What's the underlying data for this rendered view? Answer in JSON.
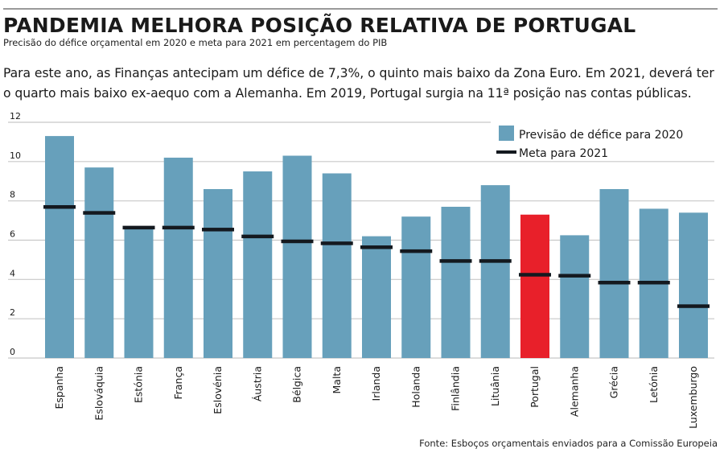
{
  "header": {
    "title": "PANDEMIA MELHORA POSIÇÃO RELATIVA DE PORTUGAL",
    "subtitle": "Precisão do défice orçamental em 2020 e meta para 2021 em percentagem do PIB"
  },
  "lead": {
    "line1": "Para este ano, as Finanças antecipam um défice de 7,3%, o quinto mais baixo da Zona Euro. Em 2021, deverá ter",
    "line2": "o quarto mais baixo ex-aequo com a Alemanha. Em 2019, Portugal surgia na 11ª posição nas contas públicas."
  },
  "source": "Fonte: Esboços orçamentais enviados para a Comissão Europeia",
  "colors": {
    "bar": "#67a0bb",
    "highlight": "#e8202a",
    "meta": "#14191f",
    "grid": "#c8c8c8"
  },
  "chart_data": {
    "type": "bar",
    "title": "PANDEMIA MELHORA POSIÇÃO RELATIVA DE PORTUGAL",
    "subtitle": "Precisão do défice orçamental em 2020 e meta para 2021 em percentagem do PIB",
    "xlabel": "",
    "ylabel": "",
    "ylim": [
      0,
      12
    ],
    "yticks": [
      "0",
      "2",
      "4",
      "6",
      "8",
      "10",
      "12"
    ],
    "grid": true,
    "legend_position": "top-right",
    "highlight_category": "Portugal",
    "categories": [
      "Espanha",
      "Eslováquia",
      "Estónia",
      "França",
      "Eslovénia",
      "Áustria",
      "Bélgica",
      "Malta",
      "Irlanda",
      "Holanda",
      "Finlândia",
      "Lituânia",
      "Portugal",
      "Alemanha",
      "Grécia",
      "Letónia",
      "Luxemburgo"
    ],
    "series": [
      {
        "name": "Previsão de défice para 2020",
        "kind": "bar",
        "values": [
          11.3,
          9.7,
          6.7,
          10.2,
          8.6,
          9.5,
          10.3,
          9.4,
          6.2,
          7.2,
          7.7,
          8.8,
          7.3,
          6.25,
          8.6,
          7.6,
          7.4
        ]
      },
      {
        "name": "Meta para 2021",
        "kind": "marker-line",
        "values": [
          7.7,
          7.4,
          6.65,
          6.65,
          6.55,
          6.2,
          5.95,
          5.85,
          5.65,
          5.45,
          4.95,
          4.95,
          4.25,
          4.2,
          3.85,
          3.85,
          2.65
        ]
      }
    ]
  }
}
